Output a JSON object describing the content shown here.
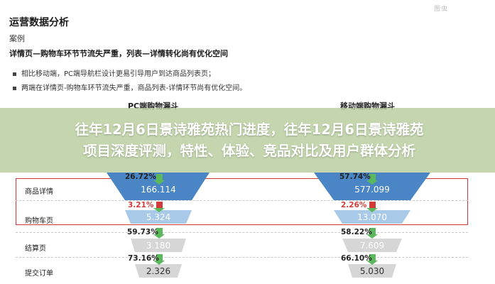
{
  "watermark": "图虫",
  "section_title": "运营数据分析",
  "example_label": "案例",
  "highlight": "详情页—购物车环节节流失严重，列表—详情转化尚有优化空间",
  "bullets": [
    "相比移动端，PC端导航栏设计更易引导用户到达商品列表页；",
    "两端在详情页-购物车环节流失严重，商品列表-详情环节尚有优化空间。"
  ],
  "funnels": {
    "pc_title": "PC端购物漏斗",
    "mobile_title": "移动端购物漏斗"
  },
  "headline_line1": "往年12月6日景诗雅苑热门进度，往年12月6日景诗雅苑",
  "headline_line2": "项目深度评测，特性、体验、竞品对比及用户群体分析",
  "stages": [
    "商品详情",
    "购物车页",
    "结算页",
    "提交订单"
  ],
  "pc": {
    "values": [
      "166.114",
      "5.324",
      "3.180",
      "2.326"
    ],
    "conversions": [
      "26.72%",
      "3.21%",
      "59.73%",
      "73.16%"
    ]
  },
  "mobile": {
    "values": [
      "577.099",
      "13.070",
      "7.609",
      "5.030"
    ],
    "conversions": [
      "57.74%",
      "2.26%",
      "58.22%",
      "66.10%"
    ]
  },
  "colors": {
    "funnel_blue": "#4a86c5",
    "funnel_light": "#a9c9e8",
    "funnel_gray": "#d6d6d6",
    "loss_red": "#d23a3a",
    "conv_green": "#5cb85c",
    "overlay": "#b8cd9e"
  }
}
